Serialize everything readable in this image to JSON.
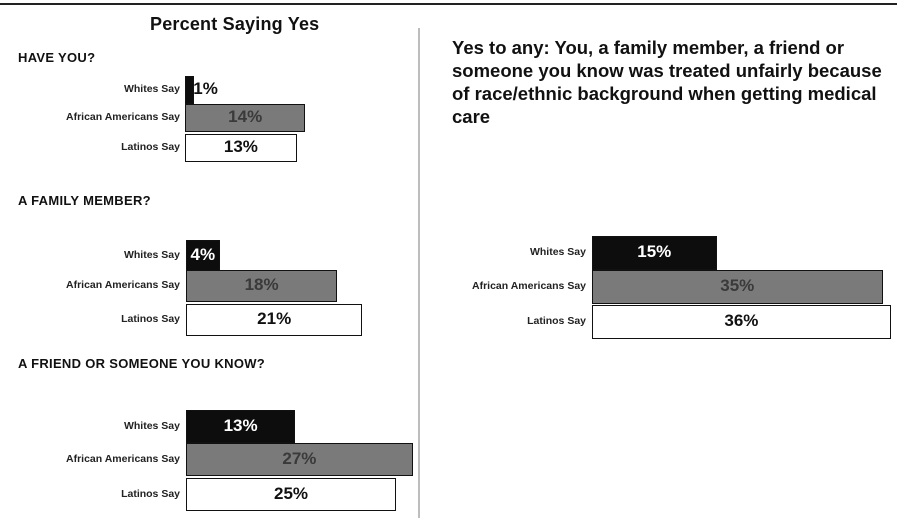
{
  "title": "Percent Saying Yes",
  "right_heading": "Yes to any:  You, a family member, a friend or someone you know was treated unfairly because of race/ethnic background when getting medical care",
  "colors": {
    "Whites Say": "#0d0d0d",
    "African Americans Say": "#7a7a7a",
    "Latinos Say": "#ffffff"
  },
  "chart_data": [
    {
      "type": "bar",
      "title": "HAVE YOU?",
      "categories": [
        "Whites Say",
        "African Americans Say",
        "Latinos Say"
      ],
      "values": [
        1,
        14,
        13
      ],
      "labels": [
        "1%",
        "14%",
        "13%"
      ]
    },
    {
      "type": "bar",
      "title": "A FAMILY MEMBER?",
      "categories": [
        "Whites Say",
        "African Americans Say",
        "Latinos Say"
      ],
      "values": [
        4,
        18,
        21
      ],
      "labels": [
        "4%",
        "18%",
        "21%"
      ]
    },
    {
      "type": "bar",
      "title": "A FRIEND OR SOMEONE YOU KNOW?",
      "categories": [
        "Whites Say",
        "African Americans Say",
        "Latinos Say"
      ],
      "values": [
        13,
        27,
        25
      ],
      "labels": [
        "13%",
        "27%",
        "25%"
      ]
    },
    {
      "type": "bar",
      "title": "",
      "categories": [
        "Whites Say",
        "African Americans Say",
        "Latinos Say"
      ],
      "values": [
        15,
        35,
        36
      ],
      "labels": [
        "15%",
        "35%",
        "36%"
      ]
    }
  ]
}
